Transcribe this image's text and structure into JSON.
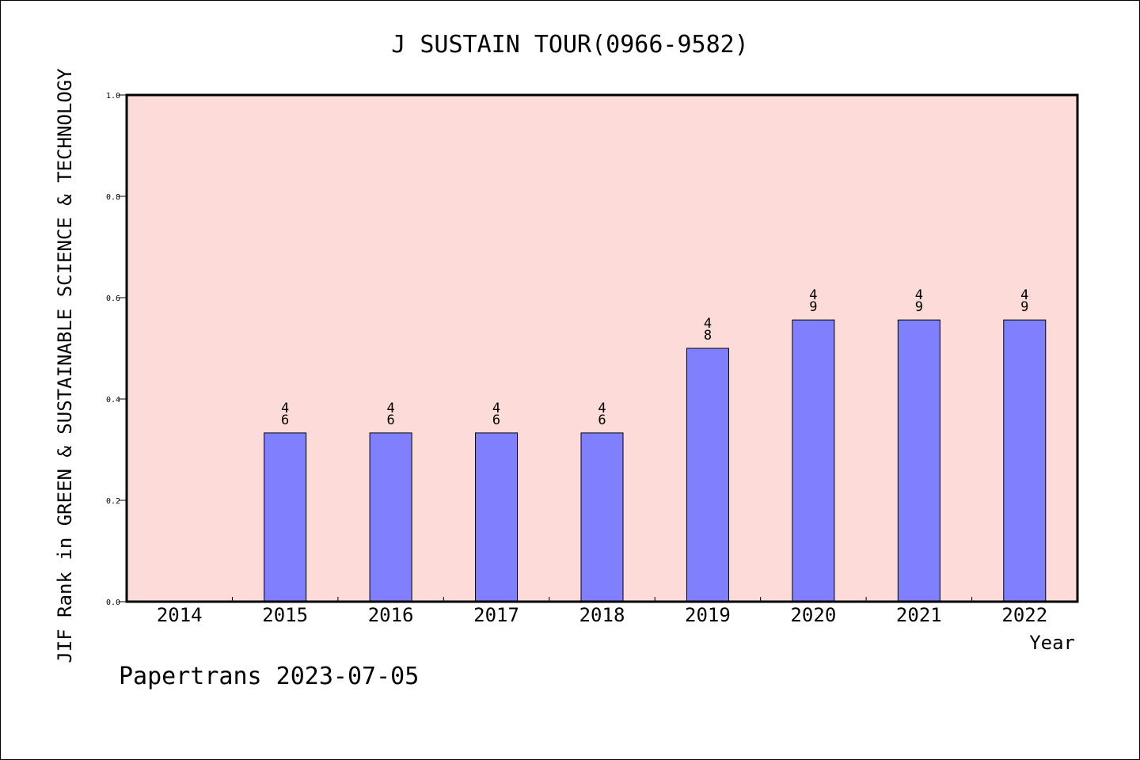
{
  "chart_data": {
    "type": "bar",
    "title": "J SUSTAIN TOUR(0966-9582)",
    "xlabel": "Year",
    "ylabel": "JIF Rank in GREEN & SUSTAINABLE SCIENCE & TECHNOLOGY",
    "categories": [
      "2014",
      "2015",
      "2016",
      "2017",
      "2018",
      "2019",
      "2020",
      "2021",
      "2022"
    ],
    "values": [
      null,
      0.333,
      0.333,
      0.333,
      0.333,
      0.5,
      0.556,
      0.556,
      0.556
    ],
    "bar_labels": [
      [
        "",
        ""
      ],
      [
        "4",
        "6"
      ],
      [
        "4",
        "6"
      ],
      [
        "4",
        "6"
      ],
      [
        "4",
        "6"
      ],
      [
        "4",
        "8"
      ],
      [
        "4",
        "9"
      ],
      [
        "4",
        "9"
      ],
      [
        "4",
        "9"
      ]
    ],
    "ylim": [
      0,
      1.0
    ],
    "yticks": [
      "0.0",
      "0.2",
      "0.4",
      "0.6",
      "0.8",
      "1.0"
    ],
    "grid": false,
    "colors": {
      "plot_background": "#fddbd8",
      "bar": "#8080ff"
    }
  },
  "footer": {
    "watermark": "Papertrans 2023-07-05"
  }
}
